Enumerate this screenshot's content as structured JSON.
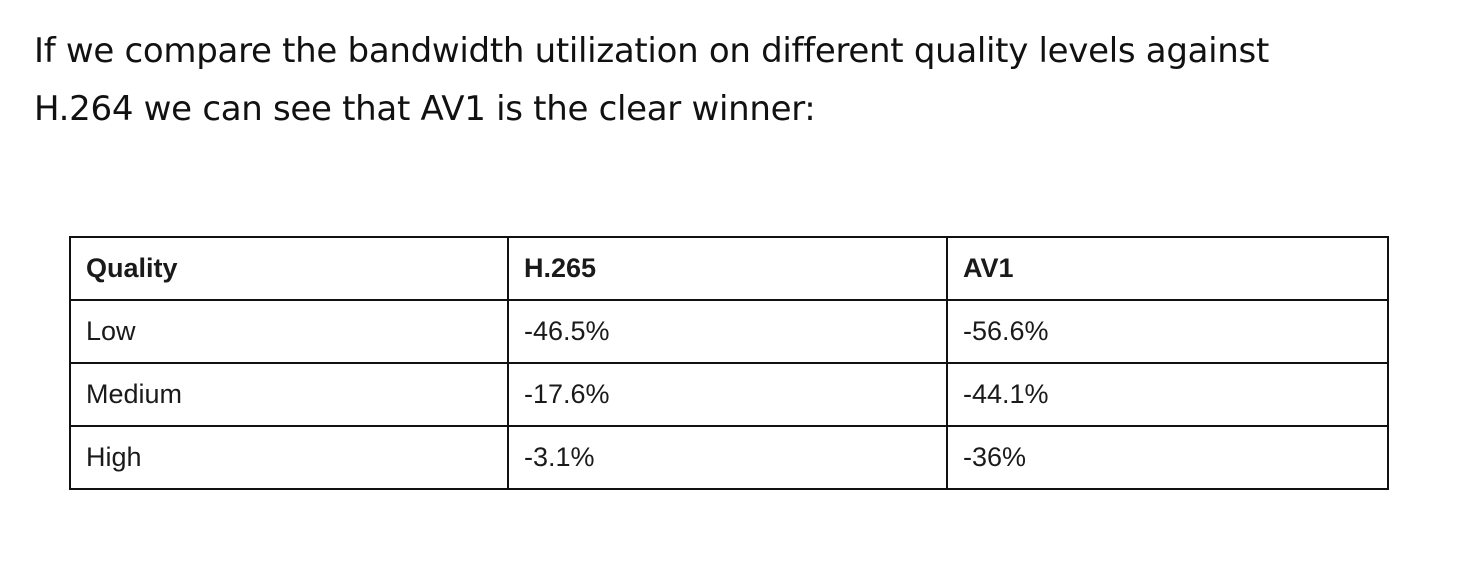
{
  "intro": {
    "line1": "If we compare the bandwidth utilization on different quality levels against",
    "line2": "H.264 we can see that AV1 is the clear winner:"
  },
  "table": {
    "headers": [
      "Quality",
      "H.265",
      "AV1"
    ],
    "rows": [
      [
        "Low",
        "-46.5%",
        "-56.6%"
      ],
      [
        "Medium",
        "-17.6%",
        "-44.1%"
      ],
      [
        "High",
        "-3.1%",
        "-36%"
      ]
    ]
  }
}
